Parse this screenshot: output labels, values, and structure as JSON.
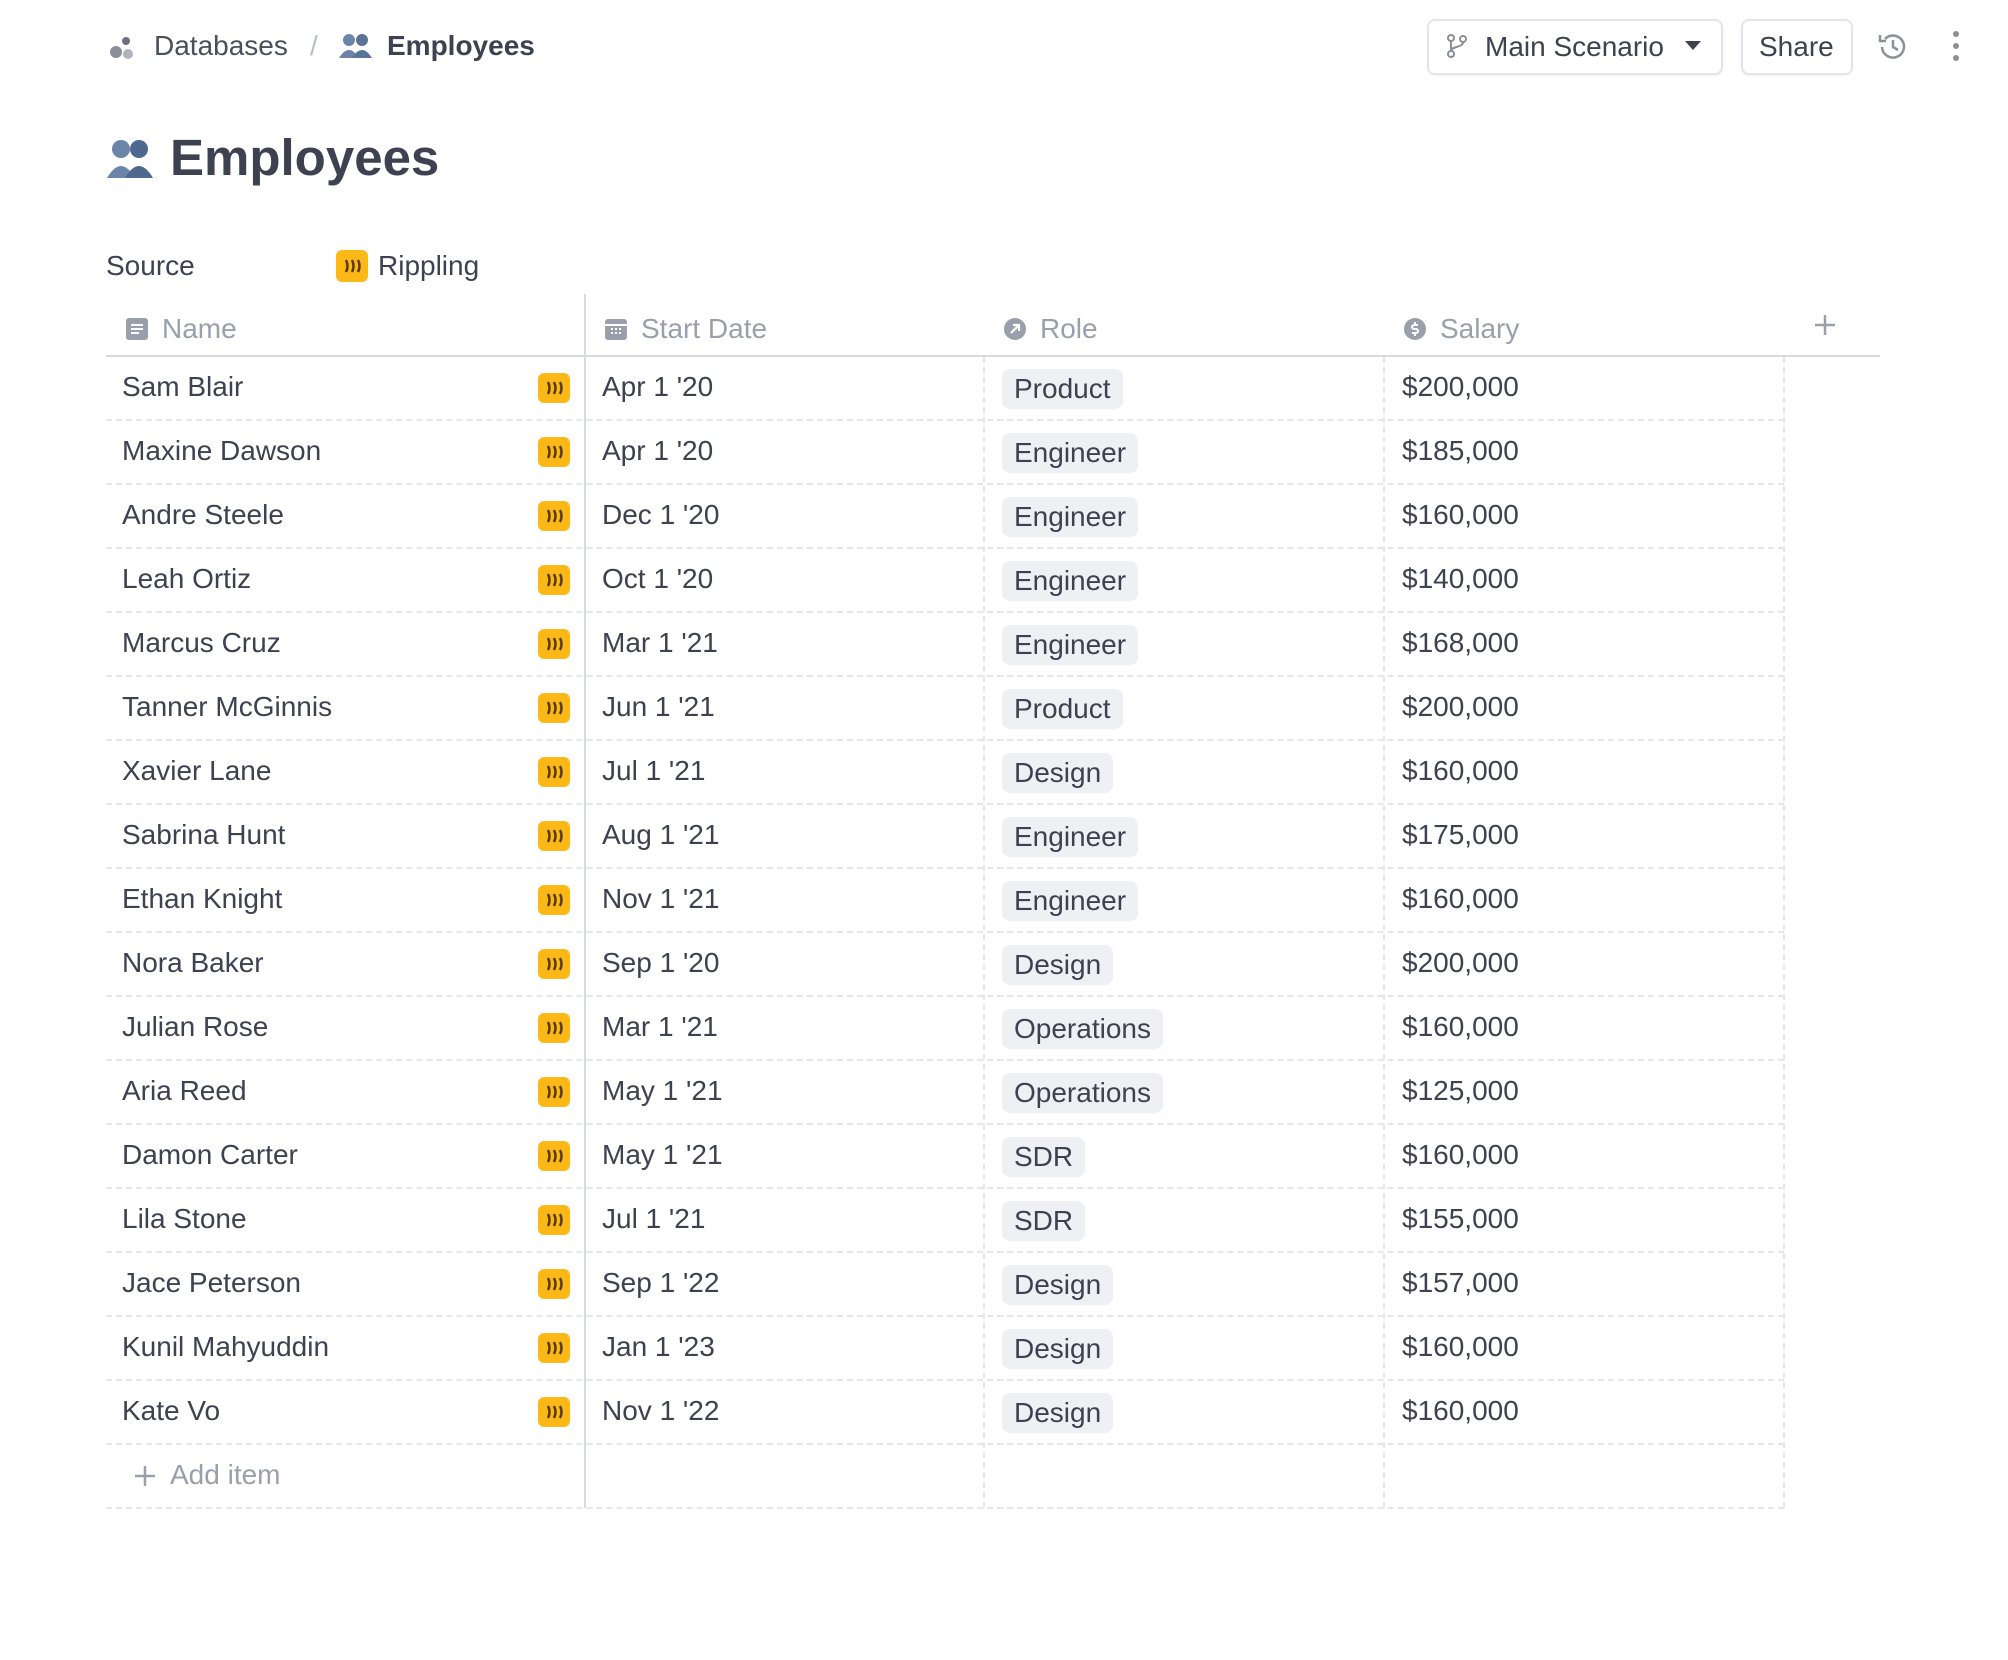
{
  "breadcrumb": {
    "parent": "Databases",
    "separator": "/",
    "current": "Employees"
  },
  "toolbar": {
    "scenario": "Main Scenario",
    "share": "Share"
  },
  "title": "Employees",
  "source": {
    "label": "Source",
    "value": "Rippling"
  },
  "table": {
    "columns": [
      "Name",
      "Start Date",
      "Role",
      "Salary"
    ],
    "rows": [
      [
        "Sam Blair",
        "Apr 1 '20",
        "Product",
        "$200,000"
      ],
      [
        "Maxine Dawson",
        "Apr 1 '20",
        "Engineer",
        "$185,000"
      ],
      [
        "Andre Steele",
        "Dec 1 '20",
        "Engineer",
        "$160,000"
      ],
      [
        "Leah Ortiz",
        "Oct 1 '20",
        "Engineer",
        "$140,000"
      ],
      [
        "Marcus Cruz",
        "Mar 1 '21",
        "Engineer",
        "$168,000"
      ],
      [
        "Tanner McGinnis",
        "Jun 1 '21",
        "Product",
        "$200,000"
      ],
      [
        "Xavier Lane",
        "Jul 1 '21",
        "Design",
        "$160,000"
      ],
      [
        "Sabrina Hunt",
        "Aug 1 '21",
        "Engineer",
        "$175,000"
      ],
      [
        "Ethan Knight",
        "Nov 1 '21",
        "Engineer",
        "$160,000"
      ],
      [
        "Nora Baker",
        "Sep 1 '20",
        "Design",
        "$200,000"
      ],
      [
        "Julian Rose",
        "Mar 1 '21",
        "Operations",
        "$160,000"
      ],
      [
        "Aria Reed",
        "May 1 '21",
        "Operations",
        "$125,000"
      ],
      [
        "Damon Carter",
        "May 1 '21",
        "SDR",
        "$160,000"
      ],
      [
        "Lila Stone",
        "Jul 1 '21",
        "SDR",
        "$155,000"
      ],
      [
        "Jace Peterson",
        "Sep 1 '22",
        "Design",
        "$157,000"
      ],
      [
        "Kunil Mahyuddin",
        "Jan 1 '23",
        "Design",
        "$160,000"
      ],
      [
        "Kate Vo",
        "Nov 1 '22",
        "Design",
        "$160,000"
      ]
    ],
    "add_item": "Add item"
  }
}
